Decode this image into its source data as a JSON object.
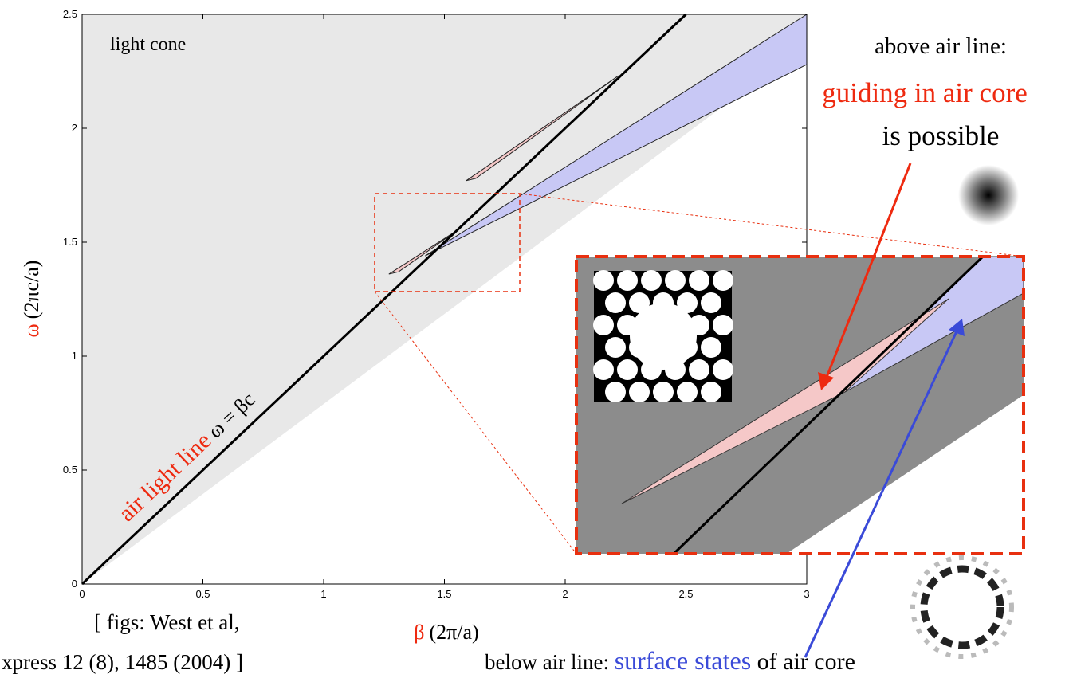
{
  "chart_data": {
    "type": "line",
    "xlim": [
      0,
      3
    ],
    "ylim": [
      0,
      2.5
    ],
    "xticks": [
      0,
      0.5,
      1,
      1.5,
      2,
      2.5,
      3
    ],
    "yticks": [
      0,
      0.5,
      1,
      1.5,
      2,
      2.5
    ],
    "x_label": {
      "symbol": "β",
      "unit": "(2π/a)"
    },
    "y_label": {
      "symbol": "ω",
      "unit": "(2πc/a)"
    },
    "series": [
      {
        "x": [
          0,
          2.5
        ],
        "values": [
          0,
          2.5
        ],
        "color": "#000000"
      }
    ],
    "regions": [
      {
        "name": "light cone",
        "x": [
          0,
          0,
          3,
          3
        ],
        "y": [
          0,
          2.5,
          2.5,
          2.37
        ],
        "color": "#e8e8e8"
      },
      {
        "x": [
          1.42,
          3,
          3
        ],
        "y": [
          1.44,
          2.5,
          2.28
        ],
        "color": "#c8c8f5"
      },
      {
        "x": [
          1.27,
          1.55,
          1.31
        ],
        "y": [
          1.36,
          1.55,
          1.37
        ],
        "color": "#f5c8c8"
      },
      {
        "x": [
          1.59,
          2.22,
          1.63
        ],
        "y": [
          1.77,
          2.23,
          1.78
        ],
        "color": "#f5c8c8"
      }
    ],
    "line_label": {
      "name": "air light line",
      "equation": "ω = βc"
    },
    "annotations": {
      "above": "above air line:",
      "guiding": "guiding in air core",
      "possible": "is possible",
      "below": "below air line: ",
      "surface": "surface states",
      "of_core": " of air core"
    },
    "citation": [
      "[ figs: West et al,",
      "xpress 12 (8), 1485 (2004) ]"
    ]
  }
}
